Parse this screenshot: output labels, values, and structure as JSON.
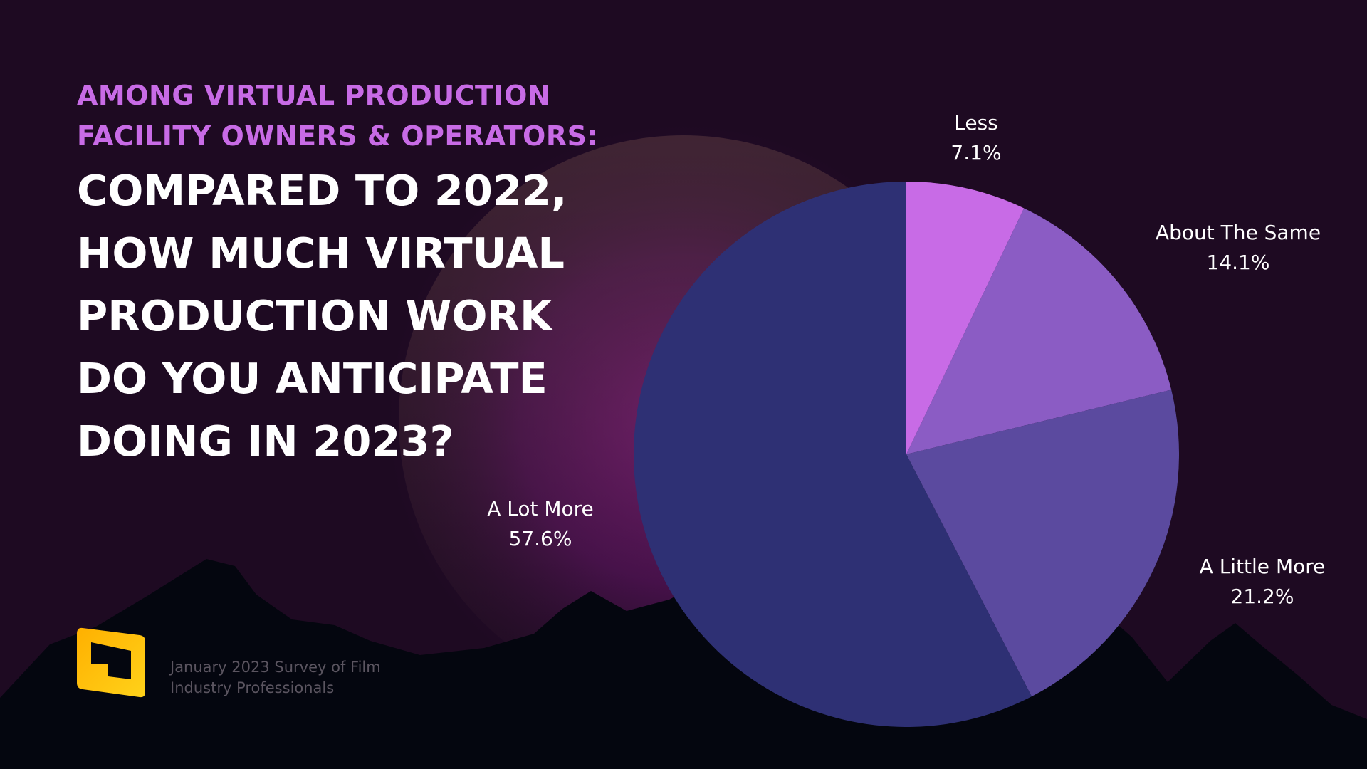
{
  "header": {
    "subtitle": "AMONG VIRTUAL PRODUCTION FACILITY OWNERS & OPERATORS:",
    "title": "COMPARED TO 2022, HOW MUCH VIRTUAL PRODUCTION WORK DO YOU ANTICIPATE DOING IN 2023?"
  },
  "footer": {
    "source": "January 2023 Survey of Film Industry Professionals"
  },
  "colors": {
    "background": "#1e0a22",
    "subtitle": "#c86be6",
    "label": "#ffffff"
  },
  "chart_data": {
    "type": "pie",
    "title": "COMPARED TO 2022, HOW MUCH VIRTUAL PRODUCTION WORK DO YOU ANTICIPATE DOING IN 2023?",
    "start": "12 o'clock",
    "direction": "clockwise",
    "slices": [
      {
        "label": "Less",
        "value": 7.1,
        "display": "7.1%",
        "color": "#c86be6"
      },
      {
        "label": "About The Same",
        "value": 14.1,
        "display": "14.1%",
        "color": "#8b5cc4"
      },
      {
        "label": "A Little More",
        "value": 21.2,
        "display": "21.2%",
        "color": "#5b4a9f"
      },
      {
        "label": "A Lot More",
        "value": 57.6,
        "display": "57.6%",
        "color": "#2e3074"
      }
    ]
  }
}
